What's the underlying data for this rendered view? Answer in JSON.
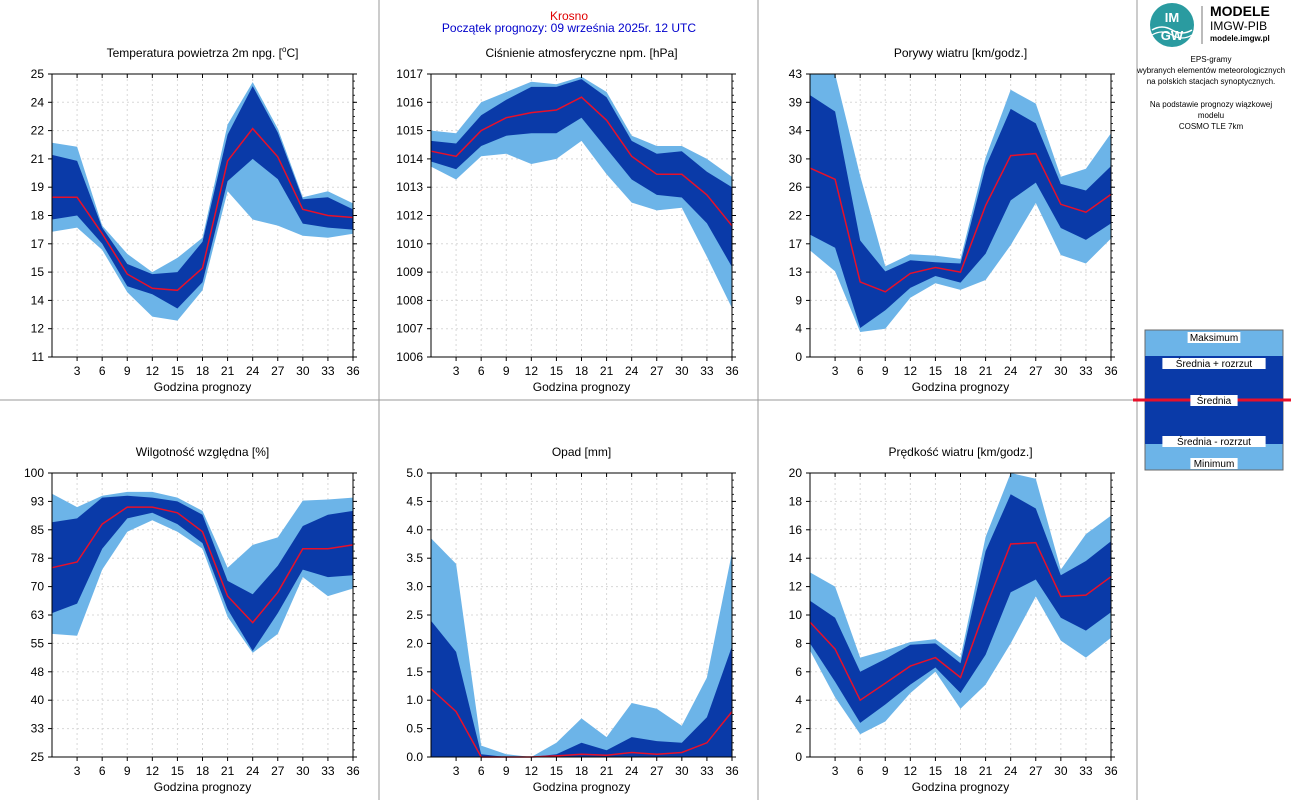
{
  "header": {
    "city": "Krosno",
    "forecast_start": "Początek prognozy: 09 września 2025r. 12 UTC"
  },
  "logo": {
    "badge_top": "IM",
    "badge_bottom": "GW",
    "line1": "MODELE",
    "line2": "IMGW-PIB",
    "line3": "modele.imgw.pl"
  },
  "info": {
    "line1": "EPS-gramy",
    "line2": "wybranych elementów meteorologicznych",
    "line3": "na polskich stacjach  synoptycznych.",
    "line4": "Na podstawie prognozy wiązkowej modelu",
    "line5": "COSMO TLE 7km"
  },
  "legend": {
    "max": "Maksimum",
    "mean_plus": "Średnia + rozrzut",
    "mean": "Średnia",
    "mean_minus": "Średnia - rozrzut",
    "min": "Minimum"
  },
  "colors": {
    "light_band": "#6cb4e8",
    "dark_band": "#0a3aa8",
    "mean_line": "#e8102a",
    "city_text": "#e00000",
    "date_text": "#0000cc",
    "grid": "#d8d8d8",
    "panel_border": "#999999"
  },
  "chart_data": [
    {
      "type": "area",
      "title": "Temperatura powietrza 2m npg. [°C]",
      "xlabel": "Godzina prognozy",
      "x": [
        0,
        3,
        6,
        9,
        12,
        15,
        18,
        21,
        24,
        27,
        30,
        33,
        36
      ],
      "xticks": [
        3,
        6,
        9,
        12,
        15,
        18,
        21,
        24,
        27,
        30,
        33,
        36
      ],
      "ylim": [
        11,
        25
      ],
      "yticks": [
        "11",
        "12",
        "14",
        "15",
        "17",
        "18",
        "19",
        "21",
        "22",
        "24",
        "25"
      ],
      "max": [
        21.6,
        21.4,
        17.5,
        16.1,
        15.2,
        15.9,
        16.9,
        22.5,
        24.6,
        22.3,
        18.9,
        19.2,
        18.6
      ],
      "upper": [
        21.0,
        20.7,
        17.4,
        15.6,
        15.1,
        15.2,
        16.7,
        22.0,
        24.4,
        22.1,
        18.8,
        18.9,
        18.3
      ],
      "mean": [
        18.9,
        18.9,
        17.1,
        15.1,
        14.4,
        14.3,
        15.4,
        20.7,
        22.3,
        20.9,
        18.3,
        18.0,
        17.9
      ],
      "lower": [
        17.8,
        18.0,
        16.6,
        14.5,
        14.1,
        13.4,
        14.7,
        19.7,
        20.8,
        19.8,
        17.6,
        17.4,
        17.3
      ],
      "min": [
        17.2,
        17.4,
        16.3,
        14.2,
        13.0,
        12.8,
        14.3,
        19.2,
        17.8,
        17.5,
        17.0,
        16.9,
        17.1
      ]
    },
    {
      "type": "area",
      "title": "Ciśnienie atmosferyczne npm. [hPa]",
      "xlabel": "Godzina prognozy",
      "x": [
        0,
        3,
        6,
        9,
        12,
        15,
        18,
        21,
        24,
        27,
        30,
        33,
        36
      ],
      "xticks": [
        3,
        6,
        9,
        12,
        15,
        18,
        21,
        24,
        27,
        30,
        33,
        36
      ],
      "ylim": [
        1006,
        1017
      ],
      "yticks": [
        "1006",
        "1007",
        "1008",
        "1009",
        "1010",
        "1012",
        "1013",
        "1014",
        "1015",
        "1016",
        "1017"
      ],
      "max": [
        1014.8,
        1014.7,
        1015.9,
        1016.3,
        1016.7,
        1016.6,
        1016.9,
        1016.3,
        1014.6,
        1014.2,
        1014.2,
        1013.7,
        1013.0
      ],
      "upper": [
        1014.4,
        1014.3,
        1015.4,
        1016.0,
        1016.5,
        1016.5,
        1016.8,
        1016.1,
        1014.4,
        1013.9,
        1014.0,
        1013.2,
        1012.6
      ],
      "mean": [
        1014.0,
        1013.8,
        1014.8,
        1015.3,
        1015.5,
        1015.6,
        1016.1,
        1015.2,
        1013.8,
        1013.1,
        1013.1,
        1012.3,
        1011.1
      ],
      "lower": [
        1013.6,
        1013.3,
        1014.2,
        1014.6,
        1014.7,
        1014.7,
        1015.3,
        1014.1,
        1012.9,
        1012.3,
        1012.2,
        1011.2,
        1009.5
      ],
      "min": [
        1013.4,
        1012.9,
        1013.8,
        1013.9,
        1013.5,
        1013.7,
        1014.4,
        1013.1,
        1012.0,
        1011.7,
        1011.8,
        1009.9,
        1007.9
      ]
    },
    {
      "type": "area",
      "title": "Porywy wiatru [km/godz.]",
      "xlabel": "Godzina prognozy",
      "x": [
        0,
        3,
        6,
        9,
        12,
        15,
        18,
        21,
        24,
        27,
        30,
        33,
        36
      ],
      "xticks": [
        3,
        6,
        9,
        12,
        15,
        18,
        21,
        24,
        27,
        30,
        33,
        36
      ],
      "ylim": [
        0,
        43
      ],
      "yticks": [
        "0",
        "4",
        "9",
        "13",
        "17",
        "22",
        "26",
        "30",
        "34",
        "39",
        "43"
      ],
      "max": [
        43.0,
        43.2,
        27.5,
        13.8,
        15.6,
        15.4,
        14.9,
        30.3,
        40.6,
        38.5,
        27.4,
        28.6,
        34.0
      ],
      "upper": [
        39.8,
        37.3,
        17.7,
        13.0,
        14.7,
        14.4,
        14.2,
        28.9,
        37.7,
        35.5,
        26.3,
        25.3,
        29.0
      ],
      "mean": [
        28.7,
        27.0,
        11.4,
        9.9,
        12.7,
        13.6,
        12.9,
        23.0,
        30.6,
        30.9,
        23.2,
        22.0,
        24.7
      ],
      "lower": [
        18.6,
        16.6,
        4.4,
        7.1,
        10.5,
        12.3,
        11.3,
        15.7,
        23.8,
        26.5,
        19.6,
        17.8,
        20.3
      ],
      "min": [
        16.2,
        13.0,
        3.8,
        4.3,
        9.0,
        11.2,
        10.2,
        11.7,
        17.0,
        23.4,
        15.5,
        14.2,
        18.0
      ]
    },
    {
      "type": "area",
      "title": "Wilgotność względna [%]",
      "xlabel": "Godzina prognozy",
      "x": [
        0,
        3,
        6,
        9,
        12,
        15,
        18,
        21,
        24,
        27,
        30,
        33,
        36
      ],
      "xticks": [
        3,
        6,
        9,
        12,
        15,
        18,
        21,
        24,
        27,
        30,
        33,
        36
      ],
      "ylim": [
        25,
        100
      ],
      "yticks": [
        "25",
        "33",
        "40",
        "48",
        "55",
        "63",
        "70",
        "78",
        "85",
        "93",
        "100"
      ],
      "max": [
        94.5,
        91.0,
        94.0,
        95.0,
        95.0,
        93.5,
        90.0,
        75.0,
        81.0,
        83.0,
        92.7,
        93.0,
        93.5
      ],
      "upper": [
        87.0,
        88.0,
        93.5,
        94.0,
        93.5,
        92.5,
        89.0,
        71.5,
        68.0,
        75.5,
        86.0,
        89.0,
        90.0
      ],
      "mean": [
        75.0,
        76.5,
        86.5,
        91.0,
        91.0,
        89.5,
        84.5,
        67.5,
        60.5,
        68.5,
        80.0,
        80.0,
        81.0
      ],
      "lower": [
        63.0,
        65.5,
        80.0,
        88.0,
        89.5,
        86.5,
        81.5,
        64.0,
        53.0,
        63.0,
        74.5,
        72.5,
        73.0
      ],
      "min": [
        57.5,
        57.0,
        74.5,
        84.5,
        87.5,
        84.5,
        80.0,
        62.0,
        52.5,
        57.5,
        72.5,
        67.5,
        69.5
      ]
    },
    {
      "type": "area",
      "title": "Opad [mm]",
      "xlabel": "Godzina prognozy",
      "x": [
        0,
        3,
        6,
        9,
        12,
        15,
        18,
        21,
        24,
        27,
        30,
        33,
        36
      ],
      "xticks": [
        3,
        6,
        9,
        12,
        15,
        18,
        21,
        24,
        27,
        30,
        33,
        36
      ],
      "ylim": [
        0,
        5
      ],
      "yticks": [
        "0.0",
        "0.5",
        "1.0",
        "1.5",
        "2.0",
        "2.5",
        "3.0",
        "3.5",
        "4.0",
        "4.5",
        "5.0"
      ],
      "max": [
        3.85,
        3.4,
        0.2,
        0.05,
        0.0,
        0.25,
        0.68,
        0.35,
        0.95,
        0.85,
        0.55,
        1.4,
        3.6
      ],
      "upper": [
        2.4,
        1.85,
        0.05,
        0.0,
        0.0,
        0.05,
        0.25,
        0.12,
        0.35,
        0.28,
        0.25,
        0.7,
        1.95
      ],
      "mean": [
        1.2,
        0.8,
        0.0,
        0.0,
        0.0,
        0.02,
        0.05,
        0.03,
        0.08,
        0.05,
        0.08,
        0.25,
        0.8
      ],
      "lower": [
        0.0,
        0.0,
        0.0,
        0.0,
        0.0,
        0.0,
        0.0,
        0.0,
        0.0,
        0.0,
        0.0,
        0.0,
        0.0
      ],
      "min": [
        0.0,
        0.0,
        0.0,
        0.0,
        0.0,
        0.0,
        0.0,
        0.0,
        0.0,
        0.0,
        0.0,
        0.0,
        0.0
      ]
    },
    {
      "type": "area",
      "title": "Prędkość wiatru [km/godz.]",
      "xlabel": "Godzina prognozy",
      "x": [
        0,
        3,
        6,
        9,
        12,
        15,
        18,
        21,
        24,
        27,
        30,
        33,
        36
      ],
      "xticks": [
        3,
        6,
        9,
        12,
        15,
        18,
        21,
        24,
        27,
        30,
        33,
        36
      ],
      "ylim": [
        0,
        20
      ],
      "yticks": [
        "0",
        "2",
        "4",
        "6",
        "8",
        "10",
        "12",
        "14",
        "16",
        "18",
        "20"
      ],
      "max": [
        13.0,
        12.0,
        7.0,
        7.5,
        8.1,
        8.3,
        7.0,
        15.5,
        20.0,
        19.6,
        13.2,
        15.7,
        17.0
      ],
      "upper": [
        11.0,
        9.8,
        6.0,
        6.9,
        7.9,
        8.0,
        6.6,
        14.5,
        18.5,
        17.5,
        12.8,
        13.8,
        15.2
      ],
      "mean": [
        9.5,
        7.6,
        4.0,
        5.2,
        6.4,
        7.0,
        5.6,
        10.5,
        15.0,
        15.1,
        11.3,
        11.4,
        12.7
      ],
      "lower": [
        8.0,
        5.3,
        2.4,
        3.7,
        5.1,
        6.3,
        4.5,
        7.2,
        11.6,
        12.5,
        9.8,
        8.9,
        10.2
      ],
      "min": [
        7.5,
        4.2,
        1.6,
        2.5,
        4.5,
        6.0,
        3.4,
        5.1,
        8.0,
        11.3,
        8.2,
        7.0,
        8.4
      ]
    }
  ]
}
